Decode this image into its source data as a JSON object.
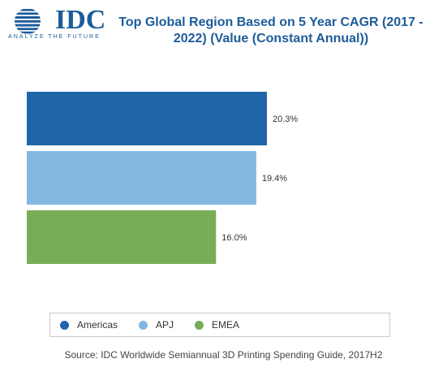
{
  "logo": {
    "text": "IDC",
    "tagline": "ANALYZE THE FUTURE"
  },
  "title": "Top Global Region Based on 5 Year CAGR (2017 - 2022) (Value (Constant Annual))",
  "source": "Source: IDC Worldwide Semiannual 3D Printing Spending Guide, 2017H2",
  "colors": {
    "brand": "#1d5c9b",
    "americas": "#1f66a8",
    "apj": "#83b6e1",
    "emea": "#78ad58"
  },
  "chart_data": {
    "type": "bar",
    "orientation": "horizontal",
    "categories": [
      "Americas",
      "APJ",
      "EMEA"
    ],
    "values": [
      20.3,
      19.4,
      16.0
    ],
    "labels": [
      "20.3%",
      "19.4%",
      "16.0%"
    ],
    "colors": [
      "#1f66a8",
      "#83b6e1",
      "#78ad58"
    ],
    "title": "Top Global Region Based on 5 Year CAGR (2017 - 2022) (Value (Constant Annual))",
    "xlabel": "",
    "ylabel": "",
    "legend": "bottom",
    "grid": false
  }
}
